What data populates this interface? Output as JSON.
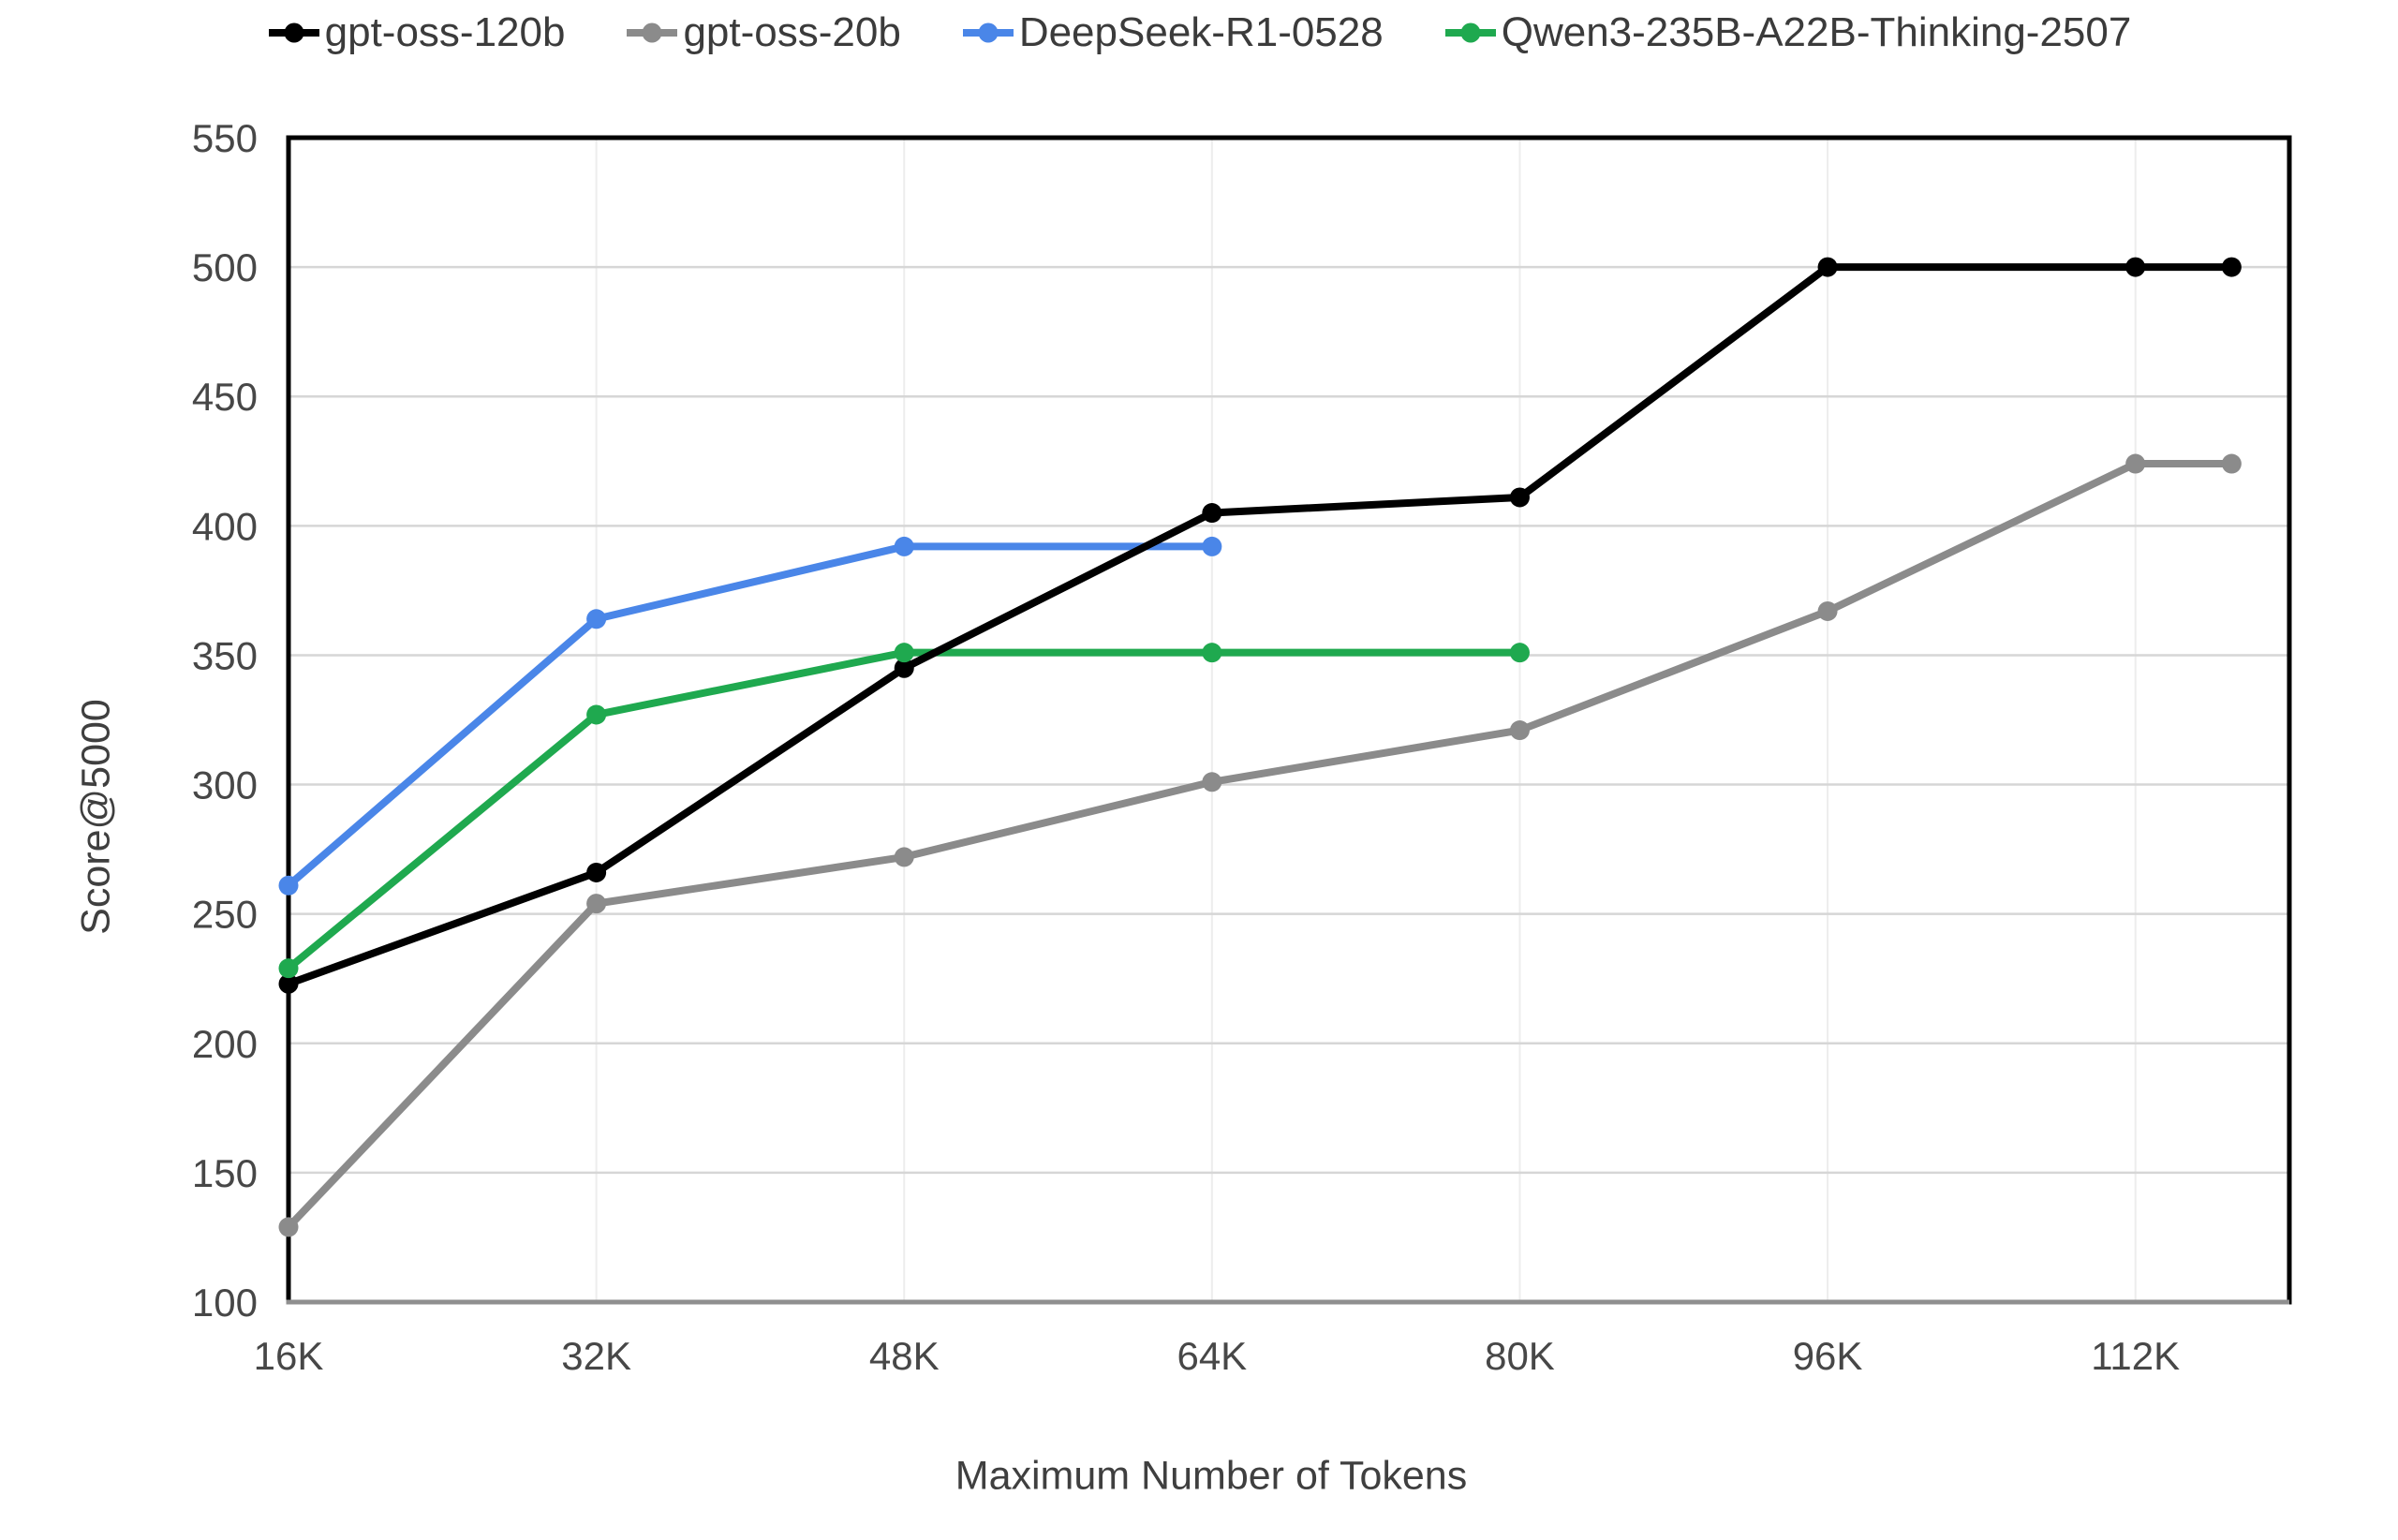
{
  "legend": {
    "items": [
      {
        "label": "gpt-oss-120b",
        "color": "#000000"
      },
      {
        "label": "gpt-oss-20b",
        "color": "#8b8b8b"
      },
      {
        "label": "DeepSeek-R1-0528",
        "color": "#4a86e8"
      },
      {
        "label": "Qwen3-235B-A22B-Thinking-2507",
        "color": "#1fa94f"
      }
    ]
  },
  "axes": {
    "y_title": "Score@5000",
    "x_title": "Maximum Number of Tokens",
    "y_ticks": [
      550,
      500,
      450,
      400,
      350,
      300,
      250,
      200,
      150,
      100
    ],
    "x_ticks": [
      16,
      32,
      48,
      64,
      80,
      96,
      112
    ],
    "x_tick_labels": [
      "16K",
      "32K",
      "48K",
      "64K",
      "80K",
      "96K",
      "112K"
    ]
  },
  "style": {
    "h_grid_color": "#d6d6d6",
    "v_grid_color": "#ededed",
    "border_color": "#000000",
    "bottom_axis_color": "#8f8f8f",
    "tick_text_color": "#474747",
    "line_width": 8,
    "point_radius": 10.5
  },
  "chart_data": {
    "type": "line",
    "title": "",
    "xlabel": "Maximum Number of Tokens",
    "ylabel": "Score@5000",
    "x_units": "thousands of tokens",
    "xlim": [
      16,
      120
    ],
    "ylim": [
      100,
      550
    ],
    "y_tick_step": 50,
    "grid": true,
    "legend_position": "top",
    "x_ticks": [
      16,
      32,
      48,
      64,
      80,
      96,
      112
    ],
    "series": [
      {
        "name": "gpt-oss-120b",
        "color": "#000000",
        "x": [
          16,
          32,
          48,
          64,
          80,
          96,
          112,
          117
        ],
        "y": [
          223,
          266,
          345,
          405,
          411,
          500,
          500,
          500
        ]
      },
      {
        "name": "gpt-oss-20b",
        "color": "#8b8b8b",
        "x": [
          16,
          32,
          48,
          64,
          80,
          96,
          112,
          117
        ],
        "y": [
          129,
          254,
          272,
          301,
          321,
          367,
          424,
          424
        ]
      },
      {
        "name": "DeepSeek-R1-0528",
        "color": "#4a86e8",
        "x": [
          16,
          32,
          48,
          64
        ],
        "y": [
          261,
          364,
          392,
          392
        ]
      },
      {
        "name": "Qwen3-235B-A22B-Thinking-2507",
        "color": "#1fa94f",
        "x": [
          16,
          32,
          48,
          64,
          80
        ],
        "y": [
          229,
          327,
          351,
          351,
          351
        ]
      }
    ]
  }
}
